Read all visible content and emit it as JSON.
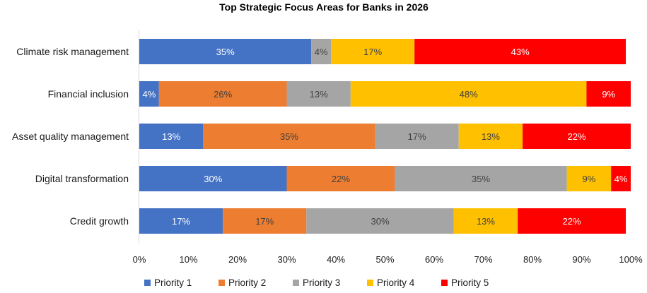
{
  "chart_data": {
    "type": "bar",
    "orientation": "horizontal",
    "stacked": true,
    "title": "Top Strategic Focus Areas for Banks in 2026",
    "categories": [
      "Climate risk management",
      "Financial inclusion",
      "Asset quality management",
      "Digital transformation",
      "Credit growth"
    ],
    "series": [
      {
        "name": "Priority 1",
        "color": "#4472C4",
        "label_color": "#ffffff",
        "values": [
          35,
          4,
          13,
          30,
          17
        ],
        "labels": [
          "35%",
          "4%",
          "13%",
          "30%",
          "17%"
        ]
      },
      {
        "name": "Priority 2",
        "color": "#ED7D31",
        "label_color": "#404040",
        "values": [
          0,
          26,
          35,
          22,
          17
        ],
        "labels": [
          "",
          "26%",
          "35%",
          "22%",
          "17%"
        ]
      },
      {
        "name": "Priority 3",
        "color": "#A5A5A5",
        "label_color": "#404040",
        "values": [
          4,
          13,
          17,
          35,
          30
        ],
        "labels": [
          "4%",
          "13%",
          "17%",
          "35%",
          "30%"
        ]
      },
      {
        "name": "Priority 4",
        "color": "#FFC000",
        "label_color": "#404040",
        "values": [
          17,
          48,
          13,
          9,
          13
        ],
        "labels": [
          "17%",
          "48%",
          "13%",
          "9%",
          "13%"
        ]
      },
      {
        "name": "Priority 5",
        "color": "#FF0000",
        "label_color": "#ffffff",
        "values": [
          43,
          9,
          22,
          4,
          22
        ],
        "labels": [
          "43%",
          "9%",
          "22%",
          "4%",
          "22%"
        ]
      }
    ],
    "xlim": [
      0,
      100
    ],
    "xticks": [
      "0%",
      "10%",
      "20%",
      "30%",
      "40%",
      "50%",
      "60%",
      "70%",
      "80%",
      "90%",
      "100%"
    ],
    "xlabel": "",
    "ylabel": "",
    "grid": false,
    "legend_position": "bottom"
  }
}
